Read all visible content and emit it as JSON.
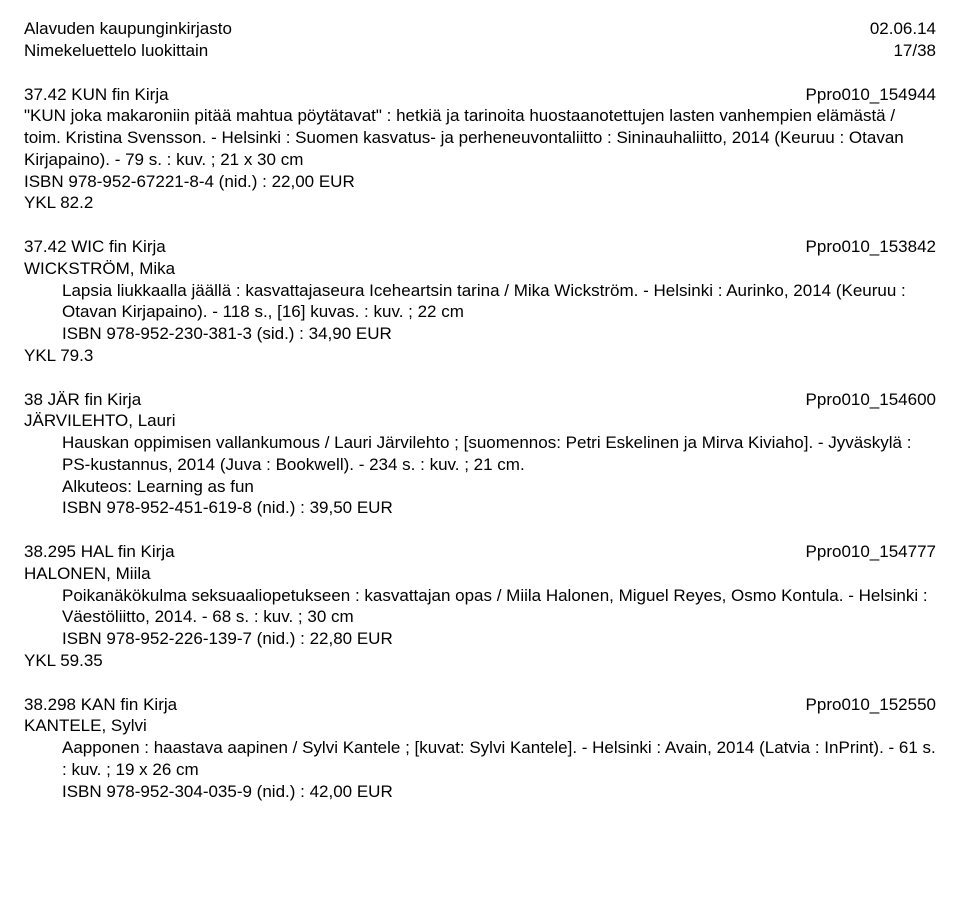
{
  "header": {
    "library": "Alavuden kaupunginkirjasto",
    "date": "02.06.14",
    "subtitle": "Nimekeluettelo luokittain",
    "page": "17/38"
  },
  "entries": [
    {
      "heading_left": "37.42 KUN  fin  Kirja",
      "heading_right": "Ppro010_154944",
      "author": "",
      "body": "\"KUN joka makaroniin pitää mahtua pöytätavat\" : hetkiä ja tarinoita huostaanotettujen lasten vanhempien elämästä / toim. Kristina Svensson. - Helsinki : Suomen kasvatus- ja perheneuvontaliitto : Sininauhaliitto, 2014 (Keuruu : Otavan Kirjapaino). - 79 s. : kuv. ; 21 x 30 cm",
      "isbn": "ISBN 978-952-67221-8-4 (nid.) : 22,00 EUR",
      "ykl": "YKL 82.2"
    },
    {
      "heading_left": "37.42 WIC  fin  Kirja",
      "heading_right": "Ppro010_153842",
      "author": "WICKSTRÖM, Mika",
      "body": "Lapsia liukkaalla jäällä : kasvattajaseura Iceheartsin tarina / Mika Wickström. - Helsinki : Aurinko, 2014 (Keuruu : Otavan Kirjapaino). - 118 s., [16] kuvas. : kuv. ; 22 cm",
      "isbn": "ISBN 978-952-230-381-3 (sid.) : 34,90 EUR",
      "ykl": "YKL 79.3"
    },
    {
      "heading_left": "38 JÄR  fin  Kirja",
      "heading_right": "Ppro010_154600",
      "author": "JÄRVILEHTO, Lauri",
      "body": "Hauskan oppimisen vallankumous / Lauri Järvilehto ; [suomennos: Petri Eskelinen ja Mirva Kiviaho]. - Jyväskylä : PS-kustannus, 2014 (Juva : Bookwell). - 234 s. : kuv. ; 21 cm.",
      "extra": "Alkuteos: Learning as fun",
      "isbn": "ISBN 978-952-451-619-8 (nid.) : 39,50 EUR",
      "ykl": ""
    },
    {
      "heading_left": "38.295 HAL  fin  Kirja",
      "heading_right": "Ppro010_154777",
      "author": "HALONEN, Miila",
      "body": "Poikanäkökulma seksuaaliopetukseen : kasvattajan opas / Miila Halonen, Miguel Reyes, Osmo Kontula. - Helsinki : Väestöliitto, 2014. - 68 s. : kuv. ; 30 cm",
      "isbn": "ISBN 978-952-226-139-7 (nid.) : 22,80 EUR",
      "ykl": "YKL 59.35"
    },
    {
      "heading_left": "38.298 KAN  fin  Kirja",
      "heading_right": "Ppro010_152550",
      "author": "KANTELE, Sylvi",
      "body": "Aapponen : haastava aapinen / Sylvi Kantele ; [kuvat: Sylvi Kantele]. - Helsinki : Avain, 2014 (Latvia : InPrint). - 61 s. : kuv. ; 19 x 26 cm",
      "isbn": "ISBN 978-952-304-035-9 (nid.) : 42,00 EUR",
      "ykl": ""
    }
  ]
}
